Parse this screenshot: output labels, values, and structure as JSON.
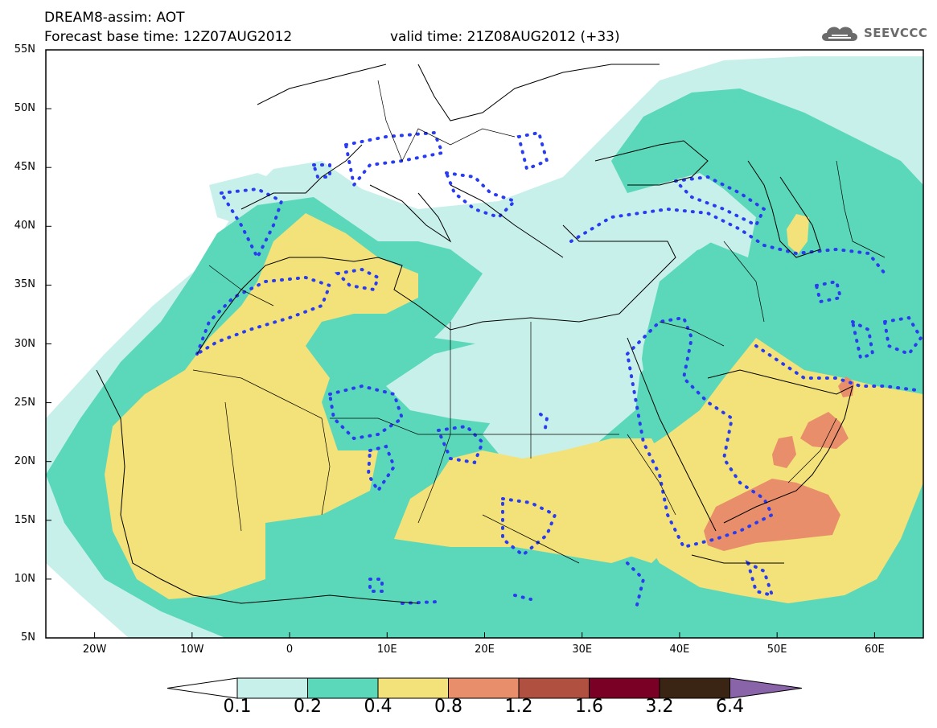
{
  "header": {
    "title": "DREAM8-assim: AOT",
    "base_time": "Forecast base time: 12Z07AUG2012",
    "valid_time": "valid time: 21Z08AUG2012 (+33)"
  },
  "logo": {
    "text": "SEEVCCC",
    "icon": "cloud-icon"
  },
  "axes": {
    "lat_labels": [
      "55N",
      "50N",
      "45N",
      "40N",
      "35N",
      "30N",
      "25N",
      "20N",
      "15N",
      "10N",
      "5N"
    ],
    "lon_labels": [
      "20W",
      "10W",
      "0",
      "10E",
      "20E",
      "30E",
      "40E",
      "50E",
      "60E"
    ],
    "lat_range": [
      5,
      55
    ],
    "lon_range": [
      -25,
      65
    ]
  },
  "legend": {
    "levels": [
      "0.1",
      "0.2",
      "0.4",
      "0.8",
      "1.2",
      "1.6",
      "3.2",
      "6.4"
    ],
    "colors": [
      "#ffffff",
      "#c8f0eb",
      "#5ad8b9",
      "#f3e17a",
      "#e88e6b",
      "#b05040",
      "#7a0026",
      "#3a2414",
      "#8a64a8"
    ]
  },
  "map_colors": {
    "ocean": "#ffffff",
    "level_0_1": "#c8f0eb",
    "level_0_2": "#5ad8b9",
    "level_0_4": "#f3e17a",
    "level_0_8": "#e88e6b",
    "dust_contour": "#2a3cf0",
    "coastline": "#000000"
  }
}
